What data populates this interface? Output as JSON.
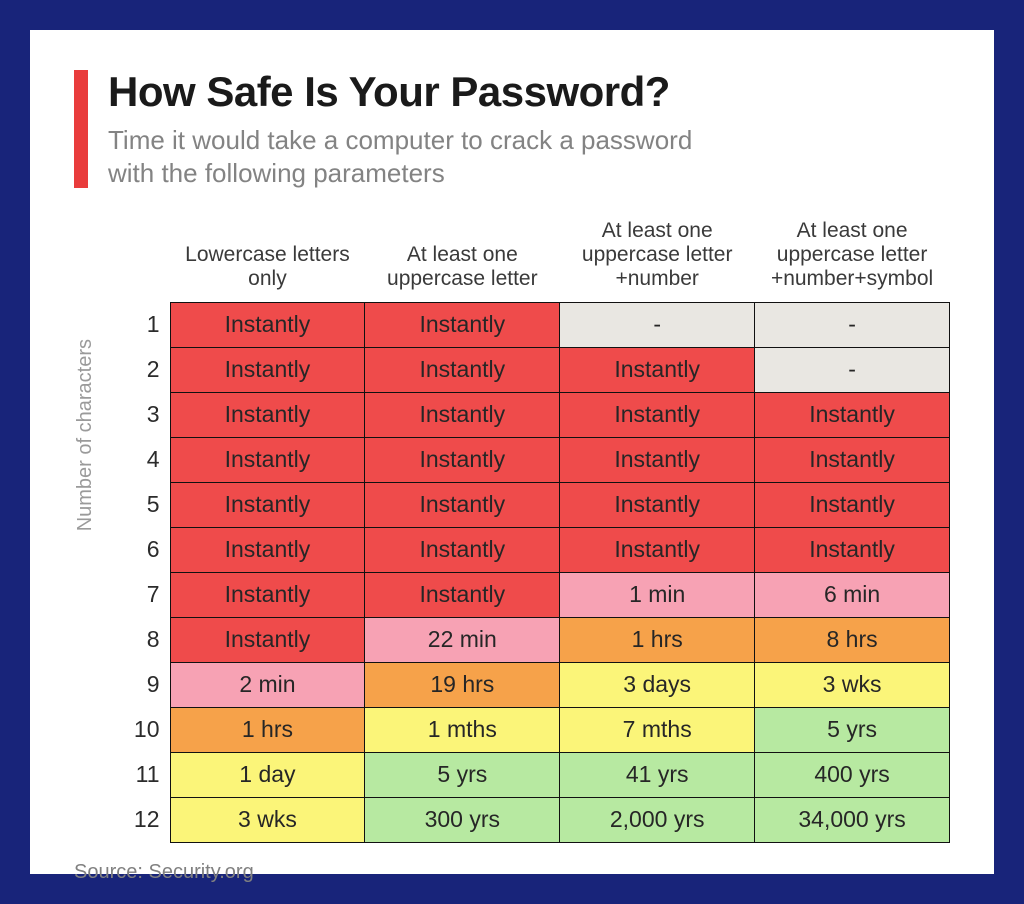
{
  "frame": {
    "border_color": "#18247a",
    "card_bg": "#ffffff"
  },
  "header": {
    "accent_color": "#e93c3c",
    "title": "How Safe Is Your Password?",
    "title_fontsize": 42,
    "title_color": "#1a1a1a",
    "subtitle": "Time it would take a computer to crack a password with the following parameters",
    "subtitle_fontsize": 26,
    "subtitle_color": "#838383"
  },
  "table": {
    "type": "heatmap-table",
    "y_axis_label": "Number of characters",
    "columns": [
      "Lowercase letters only",
      "At least one uppercase letter",
      "At least one uppercase letter +number",
      "At least one uppercase letter +number+symbol"
    ],
    "row_labels": [
      "1",
      "2",
      "3",
      "4",
      "5",
      "6",
      "7",
      "8",
      "9",
      "10",
      "11",
      "12"
    ],
    "cell_border_color": "#111111",
    "cell_fontsize": 23,
    "header_fontsize": 21,
    "palette": {
      "red": "#ef4b4b",
      "pink": "#f7a2b4",
      "orange": "#f6a24a",
      "yellow": "#fbf579",
      "green": "#b7e9a1",
      "empty": "#e9e7e2"
    },
    "rows": [
      [
        {
          "v": "Instantly",
          "c": "red"
        },
        {
          "v": "Instantly",
          "c": "red"
        },
        {
          "v": "-",
          "c": "empty"
        },
        {
          "v": "-",
          "c": "empty"
        }
      ],
      [
        {
          "v": "Instantly",
          "c": "red"
        },
        {
          "v": "Instantly",
          "c": "red"
        },
        {
          "v": "Instantly",
          "c": "red"
        },
        {
          "v": "-",
          "c": "empty"
        }
      ],
      [
        {
          "v": "Instantly",
          "c": "red"
        },
        {
          "v": "Instantly",
          "c": "red"
        },
        {
          "v": "Instantly",
          "c": "red"
        },
        {
          "v": "Instantly",
          "c": "red"
        }
      ],
      [
        {
          "v": "Instantly",
          "c": "red"
        },
        {
          "v": "Instantly",
          "c": "red"
        },
        {
          "v": "Instantly",
          "c": "red"
        },
        {
          "v": "Instantly",
          "c": "red"
        }
      ],
      [
        {
          "v": "Instantly",
          "c": "red"
        },
        {
          "v": "Instantly",
          "c": "red"
        },
        {
          "v": "Instantly",
          "c": "red"
        },
        {
          "v": "Instantly",
          "c": "red"
        }
      ],
      [
        {
          "v": "Instantly",
          "c": "red"
        },
        {
          "v": "Instantly",
          "c": "red"
        },
        {
          "v": "Instantly",
          "c": "red"
        },
        {
          "v": "Instantly",
          "c": "red"
        }
      ],
      [
        {
          "v": "Instantly",
          "c": "red"
        },
        {
          "v": "Instantly",
          "c": "red"
        },
        {
          "v": "1 min",
          "c": "pink"
        },
        {
          "v": "6 min",
          "c": "pink"
        }
      ],
      [
        {
          "v": "Instantly",
          "c": "red"
        },
        {
          "v": "22 min",
          "c": "pink"
        },
        {
          "v": "1 hrs",
          "c": "orange"
        },
        {
          "v": "8 hrs",
          "c": "orange"
        }
      ],
      [
        {
          "v": "2 min",
          "c": "pink"
        },
        {
          "v": "19 hrs",
          "c": "orange"
        },
        {
          "v": "3 days",
          "c": "yellow"
        },
        {
          "v": "3 wks",
          "c": "yellow"
        }
      ],
      [
        {
          "v": "1 hrs",
          "c": "orange"
        },
        {
          "v": "1 mths",
          "c": "yellow"
        },
        {
          "v": "7 mths",
          "c": "yellow"
        },
        {
          "v": "5 yrs",
          "c": "green"
        }
      ],
      [
        {
          "v": "1 day",
          "c": "yellow"
        },
        {
          "v": "5 yrs",
          "c": "green"
        },
        {
          "v": "41 yrs",
          "c": "green"
        },
        {
          "v": "400 yrs",
          "c": "green"
        }
      ],
      [
        {
          "v": "3 wks",
          "c": "yellow"
        },
        {
          "v": "300 yrs",
          "c": "green"
        },
        {
          "v": "2,000 yrs",
          "c": "green"
        },
        {
          "v": "34,000 yrs",
          "c": "green"
        }
      ]
    ]
  },
  "source": {
    "label": "Source: Security.org",
    "color": "#808080",
    "fontsize": 20
  }
}
